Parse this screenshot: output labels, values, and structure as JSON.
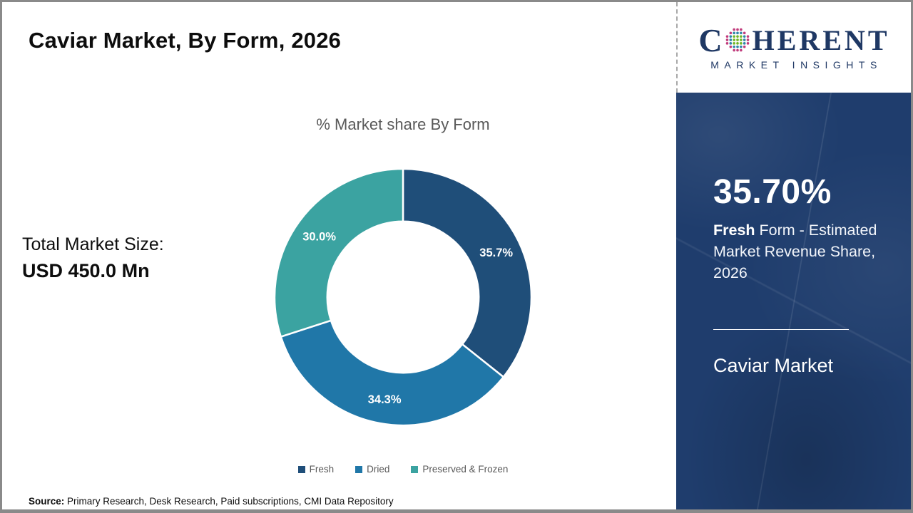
{
  "page": {
    "title": "Caviar Market, By Form, 2026",
    "total_market_label": "Total Market Size:",
    "total_market_value": "USD 450.0 Mn",
    "source_label": "Source:",
    "source_text": " Primary Research, Desk Research, Paid subscriptions, CMI Data Repository"
  },
  "logo": {
    "word_start": "C",
    "word_end": "HERENT",
    "subtitle": "MARKET INSIGHTS",
    "text_color": "#1F3864",
    "globe_colors": {
      "inner": "#72B626",
      "middle": "#2E86A8",
      "outer": "#C13C7C"
    }
  },
  "sidebar": {
    "highlight_value": "35.70%",
    "highlight_bold": "Fresh",
    "highlight_rest": " Form - Estimated Market Revenue Share, 2026",
    "footer_title": "Caviar Market",
    "bg_color": "#1F3D6D"
  },
  "chart_data": {
    "type": "pie",
    "title": "% Market share By Form",
    "segments": [
      {
        "label": "Fresh",
        "value": 35.7,
        "color": "#1F4E79"
      },
      {
        "label": "Dried",
        "value": 34.3,
        "color": "#2077A8"
      },
      {
        "label": "Preserved & Frozen",
        "value": 30.0,
        "color": "#3BA3A1"
      }
    ],
    "value_suffix": "%",
    "donut_hole_ratio": 0.59,
    "start_angle_deg": 0,
    "legend_position": "bottom",
    "label_color": "#ffffff"
  }
}
